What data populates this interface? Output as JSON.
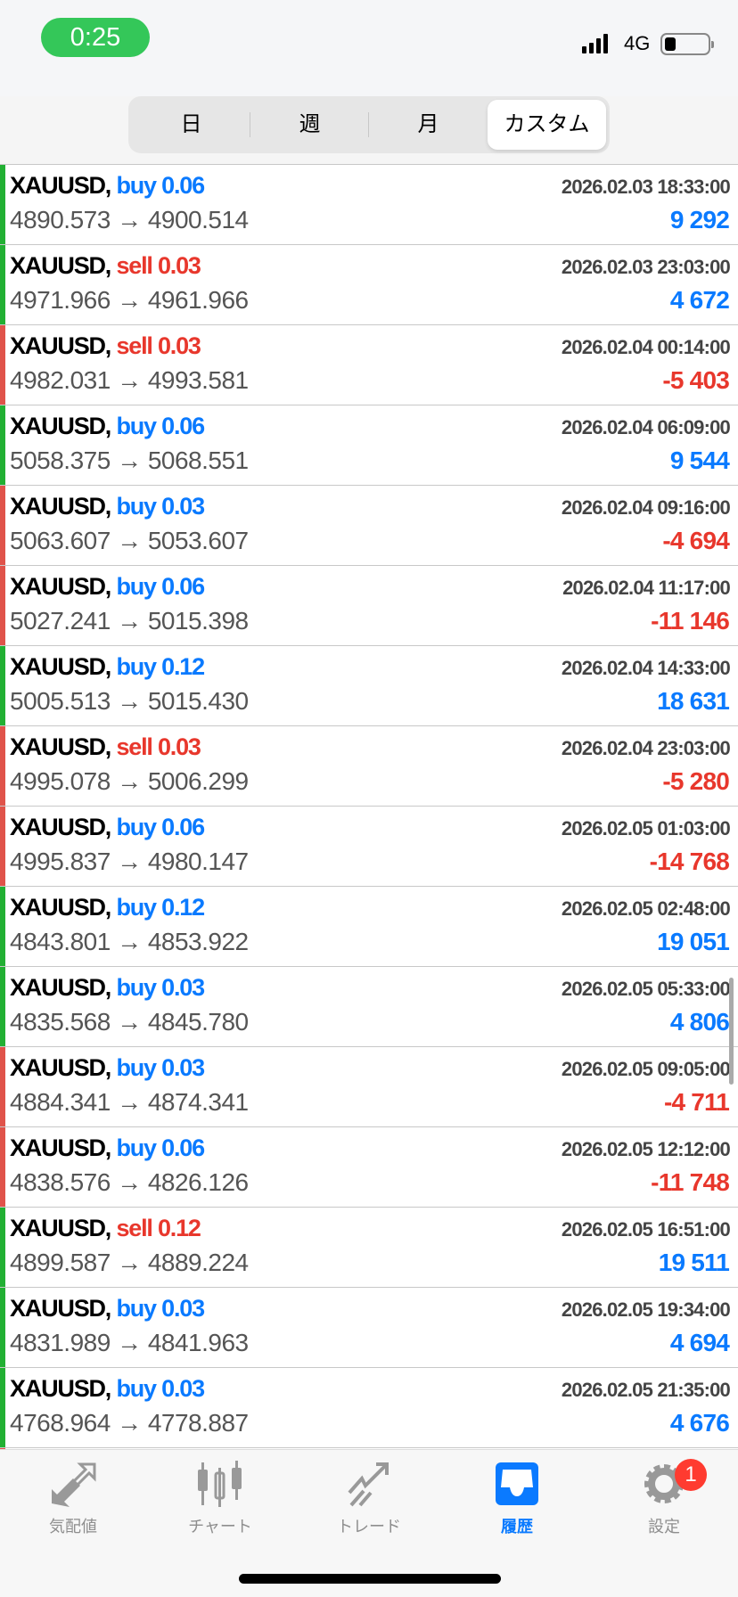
{
  "status_bar": {
    "time": "0:25",
    "network": "4G",
    "battery_level": 0.2
  },
  "segments": [
    {
      "label": "日"
    },
    {
      "label": "週"
    },
    {
      "label": "月"
    },
    {
      "label": "カスタム",
      "active": true
    }
  ],
  "colors": {
    "buy": "#0a7aff",
    "sell": "#e8372c",
    "profit": "#0a7aff",
    "loss": "#e8372c",
    "bar_profit": "#22b033",
    "bar_loss": "#e0534a"
  },
  "deals": [
    {
      "symbol": "XAUUSD,",
      "side": "buy 0.06",
      "type": "buy",
      "date": "2026.02.03 18:33:00",
      "prices": "4890.573 → 4900.514",
      "profit": "9 292",
      "positive": true
    },
    {
      "symbol": "XAUUSD,",
      "side": "sell 0.03",
      "type": "sell",
      "date": "2026.02.03 23:03:00",
      "prices": "4971.966 → 4961.966",
      "profit": "4 672",
      "positive": true
    },
    {
      "symbol": "XAUUSD,",
      "side": "sell 0.03",
      "type": "sell",
      "date": "2026.02.04 00:14:00",
      "prices": "4982.031 → 4993.581",
      "profit": "-5 403",
      "positive": false
    },
    {
      "symbol": "XAUUSD,",
      "side": "buy 0.06",
      "type": "buy",
      "date": "2026.02.04 06:09:00",
      "prices": "5058.375 → 5068.551",
      "profit": "9 544",
      "positive": true
    },
    {
      "symbol": "XAUUSD,",
      "side": "buy 0.03",
      "type": "buy",
      "date": "2026.02.04 09:16:00",
      "prices": "5063.607 → 5053.607",
      "profit": "-4 694",
      "positive": false
    },
    {
      "symbol": "XAUUSD,",
      "side": "buy 0.06",
      "type": "buy",
      "date": "2026.02.04 11:17:00",
      "prices": "5027.241 → 5015.398",
      "profit": "-11 146",
      "positive": false
    },
    {
      "symbol": "XAUUSD,",
      "side": "buy 0.12",
      "type": "buy",
      "date": "2026.02.04 14:33:00",
      "prices": "5005.513 → 5015.430",
      "profit": "18 631",
      "positive": true
    },
    {
      "symbol": "XAUUSD,",
      "side": "sell 0.03",
      "type": "sell",
      "date": "2026.02.04 23:03:00",
      "prices": "4995.078 → 5006.299",
      "profit": "-5 280",
      "positive": false
    },
    {
      "symbol": "XAUUSD,",
      "side": "buy 0.06",
      "type": "buy",
      "date": "2026.02.05 01:03:00",
      "prices": "4995.837 → 4980.147",
      "profit": "-14 768",
      "positive": false
    },
    {
      "symbol": "XAUUSD,",
      "side": "buy 0.12",
      "type": "buy",
      "date": "2026.02.05 02:48:00",
      "prices": "4843.801 → 4853.922",
      "profit": "19 051",
      "positive": true
    },
    {
      "symbol": "XAUUSD,",
      "side": "buy 0.03",
      "type": "buy",
      "date": "2026.02.05 05:33:00",
      "prices": "4835.568 → 4845.780",
      "profit": "4 806",
      "positive": true
    },
    {
      "symbol": "XAUUSD,",
      "side": "buy 0.03",
      "type": "buy",
      "date": "2026.02.05 09:05:00",
      "prices": "4884.341 → 4874.341",
      "profit": "-4 711",
      "positive": false
    },
    {
      "symbol": "XAUUSD,",
      "side": "buy 0.06",
      "type": "buy",
      "date": "2026.02.05 12:12:00",
      "prices": "4838.576 → 4826.126",
      "profit": "-11 748",
      "positive": false
    },
    {
      "symbol": "XAUUSD,",
      "side": "sell 0.12",
      "type": "sell",
      "date": "2026.02.05 16:51:00",
      "prices": "4899.587 → 4889.224",
      "profit": "19 511",
      "positive": true
    },
    {
      "symbol": "XAUUSD,",
      "side": "buy 0.03",
      "type": "buy",
      "date": "2026.02.05 19:34:00",
      "prices": "4831.989 → 4841.963",
      "profit": "4 694",
      "positive": true
    },
    {
      "symbol": "XAUUSD,",
      "side": "buy 0.03",
      "type": "buy",
      "date": "2026.02.05 21:35:00",
      "prices": "4768.964 → 4778.887",
      "profit": "4 676",
      "positive": true
    }
  ],
  "tabbar": {
    "items": [
      {
        "label": "気配値",
        "icon": "quotes-icon"
      },
      {
        "label": "チャート",
        "icon": "candlestick-icon"
      },
      {
        "label": "トレード",
        "icon": "trade-icon"
      },
      {
        "label": "履歴",
        "icon": "inbox-icon",
        "active": true
      },
      {
        "label": "設定",
        "icon": "gear-icon",
        "badge": "1"
      }
    ]
  }
}
